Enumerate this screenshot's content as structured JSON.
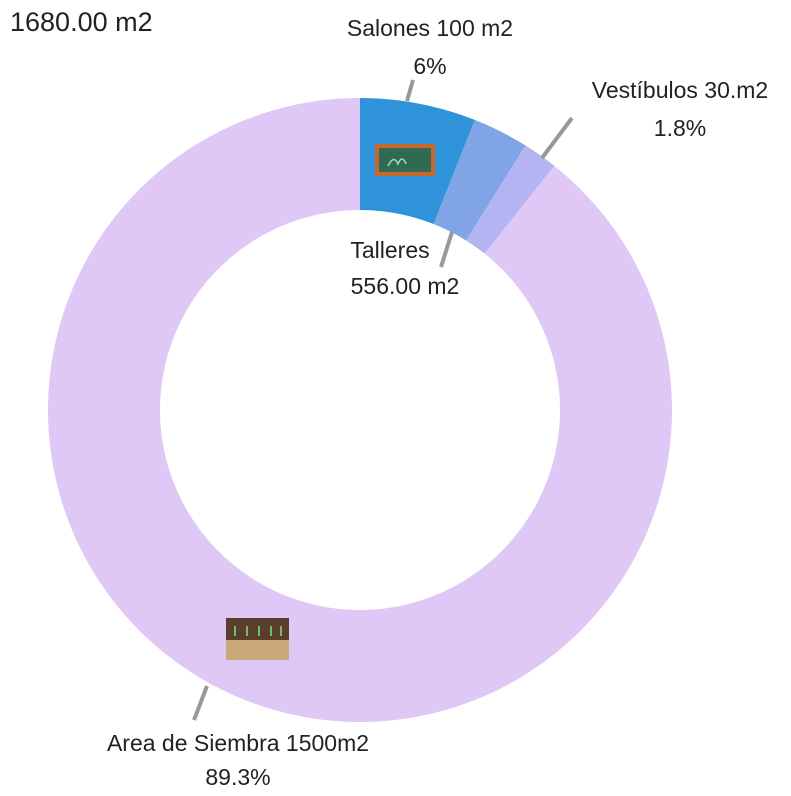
{
  "chart_data": {
    "type": "donut",
    "title": "1680.00 m2",
    "categories": [
      "Salones 100 m2",
      "Talleres",
      "Vestíbulos 30.m2",
      "Area de Siembra 1500m2"
    ],
    "values": [
      6,
      2.9,
      1.8,
      89.3
    ],
    "value_labels": [
      "6%",
      null,
      "1.8%",
      "89.3%"
    ],
    "annotations": [
      "556.00 m2"
    ],
    "colors": [
      "#2e93d8",
      "#80a4e6",
      "#b4b4f2",
      "#dfc8f6"
    ]
  }
}
